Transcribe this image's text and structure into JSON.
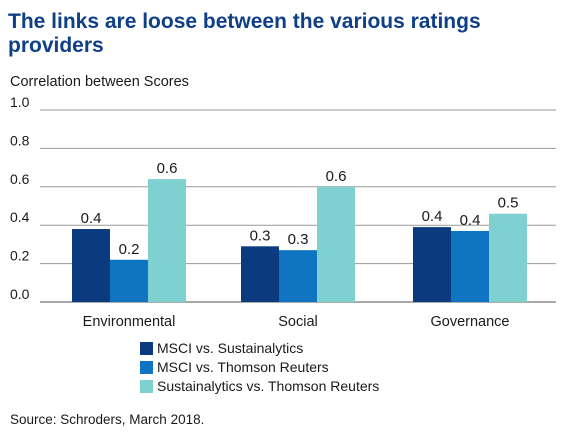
{
  "title": "The links are loose between the various ratings providers",
  "source": "Source: Schroders, March 2018.",
  "chart_data": {
    "type": "bar",
    "title": "The links are loose between the various ratings providers",
    "ylabel": "Correlation between Scores",
    "xlabel": "",
    "ylim": [
      0,
      1.0
    ],
    "yticks": [
      "0.0",
      "0.2",
      "0.4",
      "0.6",
      "0.8",
      "1.0"
    ],
    "grid": true,
    "legend_position": "bottom",
    "categories": [
      "Environmental",
      "Social",
      "Governance"
    ],
    "series": [
      {
        "name": "MSCI vs. Sustainalytics",
        "color": "#0b3a7e",
        "values": [
          0.38,
          0.29,
          0.39
        ],
        "labels": [
          "0.4",
          "0.3",
          "0.4"
        ]
      },
      {
        "name": "MSCI vs. Thomson Reuters",
        "color": "#0f74c2",
        "values": [
          0.22,
          0.27,
          0.37
        ],
        "labels": [
          "0.2",
          "0.3",
          "0.4"
        ]
      },
      {
        "name": "Sustainalytics vs. Thomson Reuters",
        "color": "#7fd1d1",
        "values": [
          0.64,
          0.6,
          0.46
        ],
        "labels": [
          "0.6",
          "0.6",
          "0.5"
        ]
      }
    ]
  }
}
